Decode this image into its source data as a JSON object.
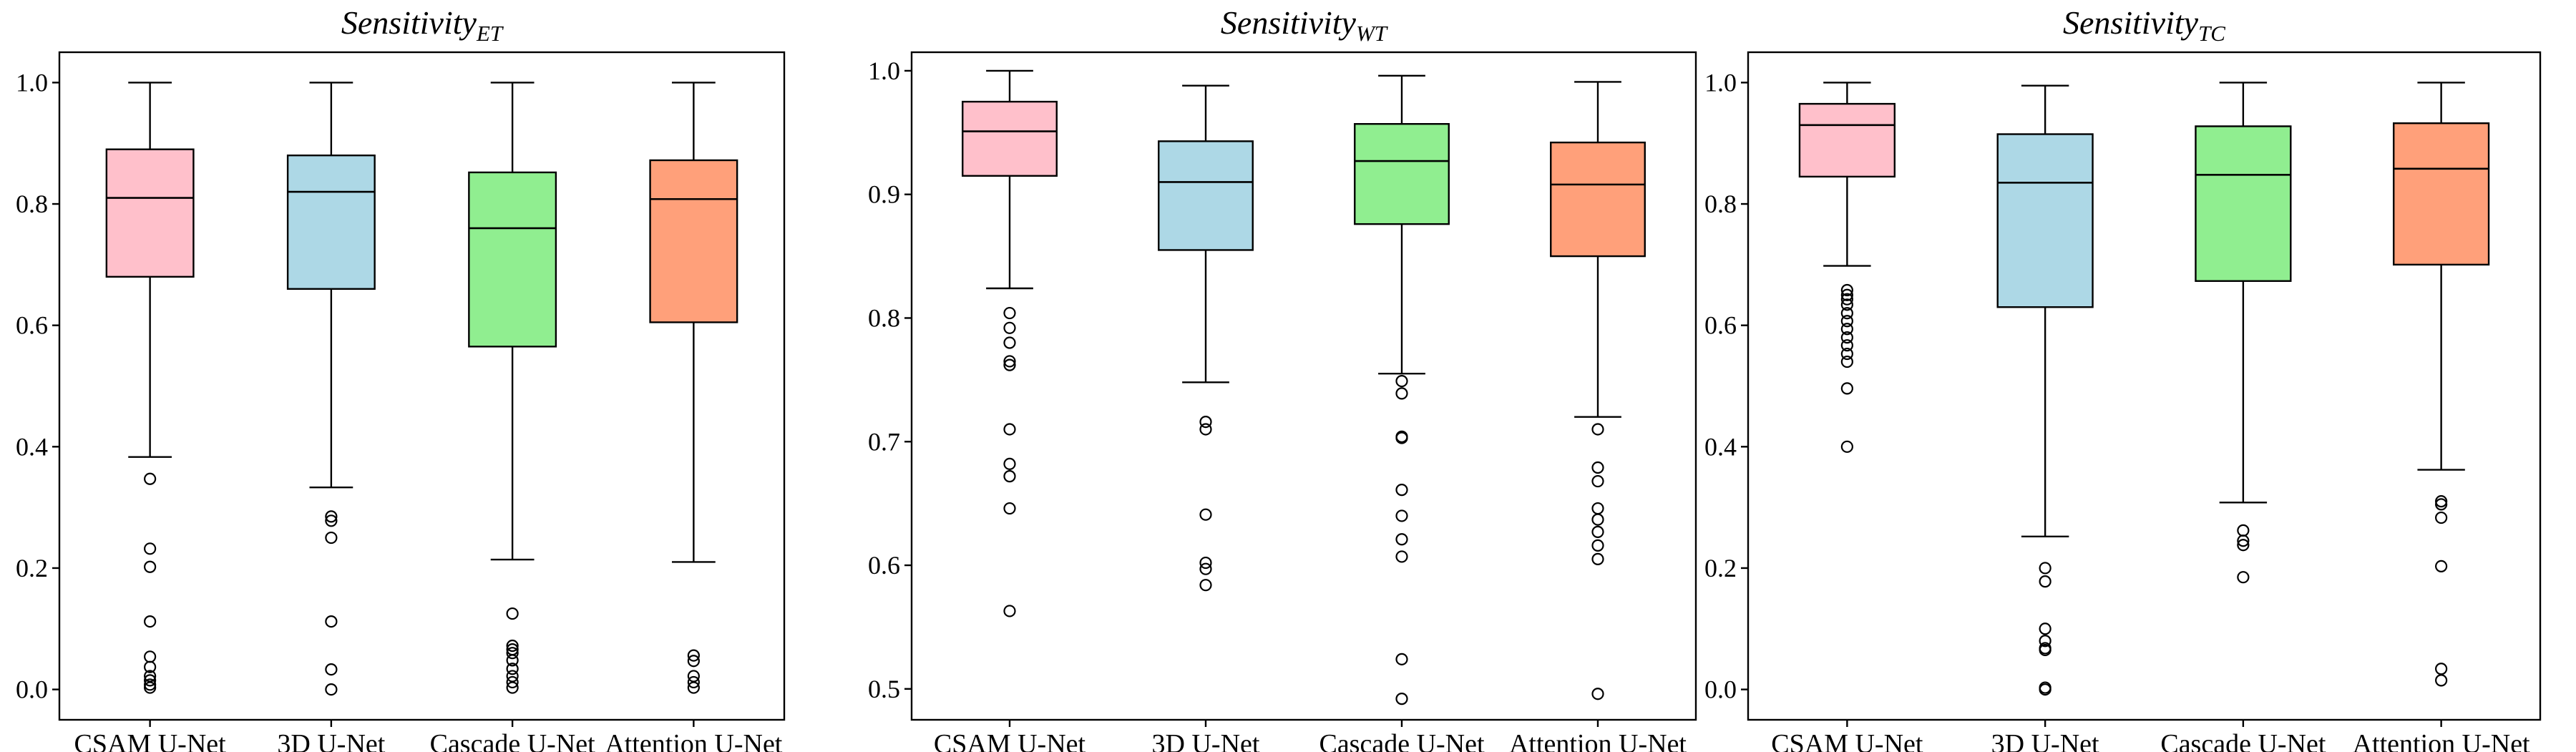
{
  "chart_data": [
    {
      "type": "box",
      "title_main": "Sensitivity",
      "title_sub": "ET",
      "ylim": [
        -0.05,
        1.05
      ],
      "yticks": [
        0.0,
        0.2,
        0.4,
        0.6,
        0.8,
        1.0
      ],
      "ytick_labels": [
        "0.0",
        "0.2",
        "0.4",
        "0.6",
        "0.8",
        "1.0"
      ],
      "categories": [
        "CSAM U-Net",
        "3D U-Net",
        "Cascade U-Net",
        "Attention U-Net"
      ],
      "colors": [
        "#FFC0CB",
        "#ADD8E6",
        "#90EE90",
        "#FFA07A"
      ],
      "boxes": [
        {
          "q1": 0.68,
          "median": 0.81,
          "q3": 0.89,
          "whislo": 0.383,
          "whishi": 1.0,
          "fliers": [
            0.347,
            0.232,
            0.202,
            0.112,
            0.054,
            0.037,
            0.022,
            0.015,
            0.008,
            0.003
          ]
        },
        {
          "q1": 0.66,
          "median": 0.82,
          "q3": 0.88,
          "whislo": 0.333,
          "whishi": 1.0,
          "fliers": [
            0.285,
            0.278,
            0.25,
            0.112,
            0.033,
            0.0
          ]
        },
        {
          "q1": 0.565,
          "median": 0.76,
          "q3": 0.852,
          "whislo": 0.214,
          "whishi": 1.0,
          "fliers": [
            0.125,
            0.072,
            0.066,
            0.06,
            0.048,
            0.034,
            0.022,
            0.012,
            0.003
          ]
        },
        {
          "q1": 0.605,
          "median": 0.808,
          "q3": 0.872,
          "whislo": 0.21,
          "whishi": 1.0,
          "fliers": [
            0.056,
            0.047,
            0.022,
            0.012,
            0.003
          ]
        }
      ]
    },
    {
      "type": "box",
      "title_main": "Sensitivity",
      "title_sub": "WT",
      "ylim": [
        0.475,
        1.015
      ],
      "yticks": [
        0.5,
        0.6,
        0.7,
        0.8,
        0.9,
        1.0
      ],
      "ytick_labels": [
        "0.5",
        "0.6",
        "0.7",
        "0.8",
        "0.9",
        "1.0"
      ],
      "categories": [
        "CSAM U-Net",
        "3D U-Net",
        "Cascade U-Net",
        "Attention U-Net"
      ],
      "colors": [
        "#FFC0CB",
        "#ADD8E6",
        "#90EE90",
        "#FFA07A"
      ],
      "boxes": [
        {
          "q1": 0.915,
          "median": 0.951,
          "q3": 0.975,
          "whislo": 0.824,
          "whishi": 1.0,
          "fliers": [
            0.804,
            0.792,
            0.78,
            0.765,
            0.762,
            0.71,
            0.682,
            0.672,
            0.646,
            0.563
          ]
        },
        {
          "q1": 0.855,
          "median": 0.91,
          "q3": 0.943,
          "whislo": 0.748,
          "whishi": 0.988,
          "fliers": [
            0.716,
            0.71,
            0.641,
            0.602,
            0.597,
            0.584
          ]
        },
        {
          "q1": 0.876,
          "median": 0.927,
          "q3": 0.957,
          "whislo": 0.755,
          "whishi": 0.996,
          "fliers": [
            0.749,
            0.739,
            0.704,
            0.703,
            0.661,
            0.64,
            0.621,
            0.607,
            0.524,
            0.492
          ]
        },
        {
          "q1": 0.85,
          "median": 0.908,
          "q3": 0.942,
          "whislo": 0.72,
          "whishi": 0.991,
          "fliers": [
            0.71,
            0.679,
            0.668,
            0.646,
            0.637,
            0.627,
            0.616,
            0.605,
            0.496
          ]
        }
      ]
    },
    {
      "type": "box",
      "title_main": "Sensitivity",
      "title_sub": "TC",
      "ylim": [
        -0.05,
        1.05
      ],
      "yticks": [
        0.0,
        0.2,
        0.4,
        0.6,
        0.8,
        1.0
      ],
      "ytick_labels": [
        "0.0",
        "0.2",
        "0.4",
        "0.6",
        "0.8",
        "1.0"
      ],
      "categories": [
        "CSAM U-Net",
        "3D U-Net",
        "Cascade U-Net",
        "Attention U-Net"
      ],
      "colors": [
        "#FFC0CB",
        "#ADD8E6",
        "#90EE90",
        "#FFA07A"
      ],
      "boxes": [
        {
          "q1": 0.845,
          "median": 0.93,
          "q3": 0.965,
          "whislo": 0.698,
          "whishi": 1.0,
          "fliers": [
            0.658,
            0.65,
            0.643,
            0.634,
            0.62,
            0.607,
            0.594,
            0.58,
            0.567,
            0.553,
            0.54,
            0.496,
            0.4
          ]
        },
        {
          "q1": 0.63,
          "median": 0.835,
          "q3": 0.915,
          "whislo": 0.252,
          "whishi": 0.995,
          "fliers": [
            0.2,
            0.178,
            0.1,
            0.08,
            0.068,
            0.065,
            0.003,
            0.0
          ]
        },
        {
          "q1": 0.673,
          "median": 0.848,
          "q3": 0.928,
          "whislo": 0.308,
          "whishi": 1.0,
          "fliers": [
            0.262,
            0.245,
            0.238,
            0.185
          ]
        },
        {
          "q1": 0.7,
          "median": 0.858,
          "q3": 0.933,
          "whislo": 0.362,
          "whishi": 1.0,
          "fliers": [
            0.31,
            0.305,
            0.283,
            0.203,
            0.034,
            0.015
          ]
        }
      ]
    }
  ]
}
